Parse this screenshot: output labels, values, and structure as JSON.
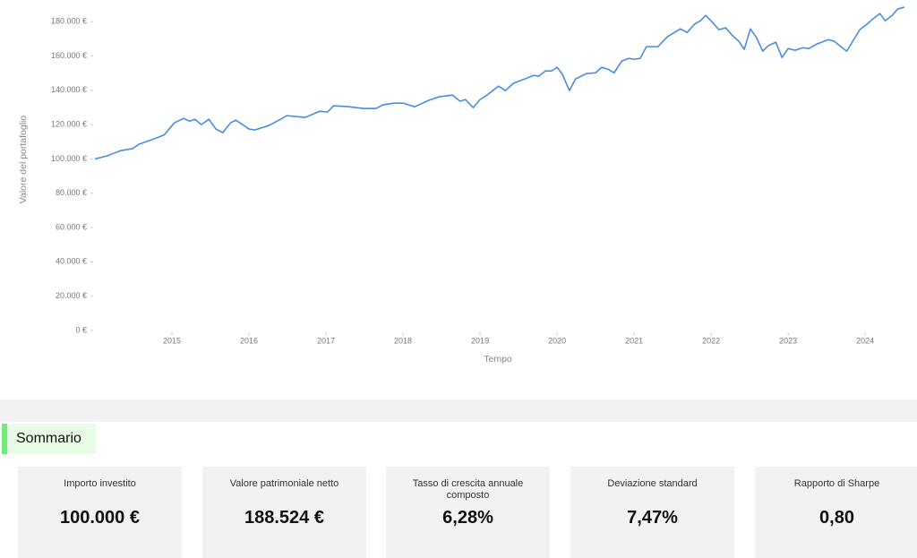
{
  "chart_data": {
    "type": "line",
    "x_label": "Tempo",
    "y_label": "Valore del portafoglio",
    "color": "#4a8ce0",
    "x": [
      2014.0,
      2014.16,
      2014.34,
      2014.49,
      2014.57,
      2014.8,
      2014.9,
      2015.03,
      2015.15,
      2015.23,
      2015.3,
      2015.38,
      2015.48,
      2015.57,
      2015.66,
      2015.76,
      2015.83,
      2016.0,
      2016.08,
      2016.26,
      2016.43,
      2016.49,
      2016.73,
      2016.92,
      2017.02,
      2017.1,
      2017.3,
      2017.48,
      2017.65,
      2017.74,
      2017.88,
      2018.0,
      2018.15,
      2018.33,
      2018.47,
      2018.64,
      2018.74,
      2018.81,
      2018.91,
      2019.0,
      2019.09,
      2019.24,
      2019.33,
      2019.43,
      2019.58,
      2019.7,
      2019.76,
      2019.85,
      2019.93,
      2020.0,
      2020.07,
      2020.16,
      2020.24,
      2020.38,
      2020.5,
      2020.58,
      2020.66,
      2020.74,
      2020.84,
      2020.93,
      2021.0,
      2021.08,
      2021.16,
      2021.31,
      2021.43,
      2021.6,
      2021.69,
      2021.78,
      2021.86,
      2021.93,
      2022.02,
      2022.1,
      2022.19,
      2022.27,
      2022.36,
      2022.43,
      2022.51,
      2022.59,
      2022.67,
      2022.74,
      2022.84,
      2022.92,
      2023.0,
      2023.09,
      2023.19,
      2023.27,
      2023.37,
      2023.52,
      2023.6,
      2023.67,
      2023.76,
      2023.93,
      2024.02,
      2024.1,
      2024.19,
      2024.26,
      2024.35,
      2024.42,
      2024.51
    ],
    "values": [
      100000,
      101800,
      104900,
      106000,
      108500,
      112200,
      114000,
      121000,
      123600,
      122000,
      123100,
      120000,
      123100,
      117400,
      115300,
      121000,
      122600,
      117400,
      116900,
      119500,
      123600,
      125200,
      124200,
      127800,
      127300,
      131000,
      130400,
      129400,
      129400,
      131500,
      132500,
      132500,
      130400,
      134100,
      136200,
      137200,
      133600,
      134600,
      129900,
      134600,
      137200,
      142400,
      139800,
      144000,
      146600,
      148700,
      148200,
      151300,
      151300,
      153400,
      149200,
      139800,
      146600,
      149700,
      150200,
      153400,
      152300,
      150200,
      157000,
      158600,
      158100,
      158600,
      165400,
      165400,
      171100,
      175800,
      173700,
      178400,
      180500,
      183600,
      179500,
      175300,
      176400,
      172200,
      168500,
      163800,
      175800,
      170600,
      162800,
      165900,
      168000,
      159100,
      164300,
      163300,
      164800,
      164300,
      166900,
      169500,
      168500,
      165900,
      162800,
      175300,
      178400,
      181600,
      184700,
      180500,
      183600,
      187300,
      188524
    ],
    "xlim": [
      2014.0,
      2024.51
    ],
    "xticks": [
      2015,
      2016,
      2017,
      2018,
      2019,
      2020,
      2021,
      2022,
      2023,
      2024
    ],
    "ylim": [
      0,
      190000
    ],
    "yticks": [
      {
        "value": 0,
        "label": "0 €"
      },
      {
        "value": 20000,
        "label": "20.000 €"
      },
      {
        "value": 40000,
        "label": "40.000 €"
      },
      {
        "value": 60000,
        "label": "60.000 €"
      },
      {
        "value": 80000,
        "label": "80.000 €"
      },
      {
        "value": 100000,
        "label": "100.000 €"
      },
      {
        "value": 120000,
        "label": "120.000 €"
      },
      {
        "value": 140000,
        "label": "140.000 €"
      },
      {
        "value": 160000,
        "label": "160.000 €"
      },
      {
        "value": 180000,
        "label": "180.000 €"
      }
    ],
    "grid": false
  },
  "summary": {
    "title": "Sommario",
    "cards": [
      {
        "label": "Importo investito",
        "value": "100.000 €"
      },
      {
        "label": "Valore patrimoniale netto",
        "value": "188.524 €"
      },
      {
        "label": "Tasso di crescita annuale composto",
        "value": "6,28%"
      },
      {
        "label": "Deviazione standard",
        "value": "7,47%"
      },
      {
        "label": "Rapporto di Sharpe",
        "value": "0,80"
      }
    ]
  }
}
